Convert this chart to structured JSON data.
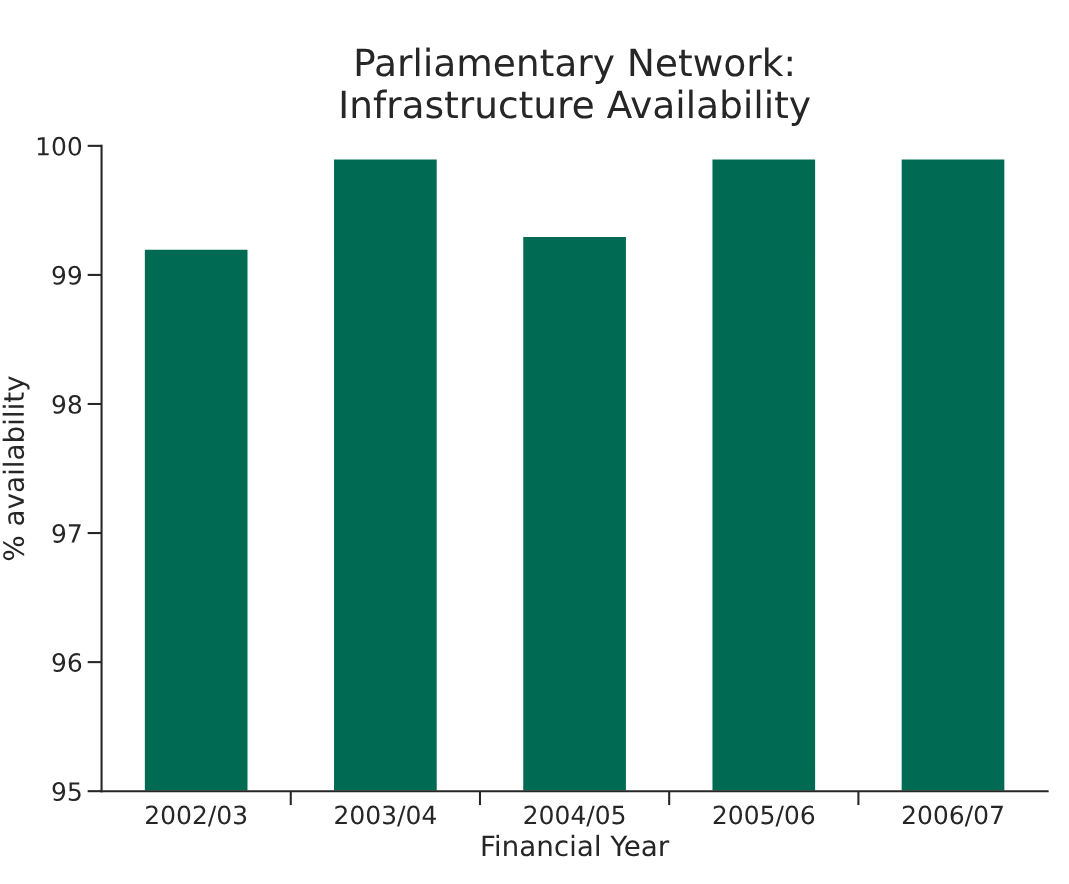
{
  "chart_data": {
    "type": "bar",
    "title": "Parliamentary Network:\nInfrastructure Availability",
    "xlabel": "Financial Year",
    "ylabel": "% availability",
    "categories": [
      "2002/03",
      "2003/04",
      "2004/05",
      "2005/06",
      "2006/07"
    ],
    "values": [
      99.2,
      99.9,
      99.3,
      99.9,
      99.9
    ],
    "color": "#006b52",
    "ylim": [
      95,
      100
    ],
    "yticks": [
      95,
      96,
      97,
      98,
      99,
      100
    ],
    "grid": false
  }
}
